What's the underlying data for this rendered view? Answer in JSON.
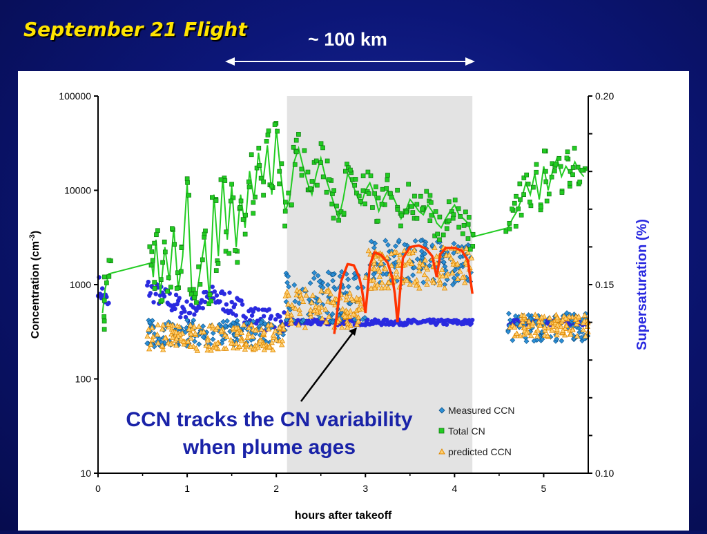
{
  "slide": {
    "title": "September 21 Flight",
    "distance_label": "~ 100 km",
    "callout_line1": "CCN tracks the CN variability",
    "callout_line2": "when plume ages"
  },
  "colors": {
    "background": "#0c1678",
    "title": "#ffe400",
    "measured_ccn": "#2c8fd6",
    "total_cn": "#22cc22",
    "predicted_ccn": "#f0a020",
    "supersaturation": "#2a2ae0",
    "fit_curve": "#ff3300",
    "shaded_region": "#e3e3e3",
    "callout_text": "#1a23a8"
  },
  "chart_data": {
    "type": "scatter",
    "xlabel": "hours after takeoff",
    "ylabel": "Concentration (cm",
    "ylabel_sup": "-3",
    "ylabel_end": ")",
    "y2label": "Supersaturation (%)",
    "xlim": [
      0,
      5.5
    ],
    "ylim": [
      10,
      100000
    ],
    "yscale": "log",
    "y2lim": [
      0.1,
      0.2
    ],
    "x_ticks": [
      "0",
      "1",
      "2",
      "3",
      "4",
      "5"
    ],
    "y_ticks": [
      "10",
      "100",
      "1000",
      "10000",
      "100000"
    ],
    "y2_ticks": [
      "0.10",
      "0.15",
      "0.20"
    ],
    "shaded_x_range": [
      2.12,
      4.2
    ],
    "legend_position": "bottom-right",
    "legend": [
      "Measured CCN",
      "Total CN",
      "predicted CCN"
    ],
    "series": [
      {
        "name": "Total CN",
        "axis": "left",
        "line_x": [
          0.05,
          0.08,
          0.12,
          0.6,
          0.62,
          0.65,
          0.7,
          0.75,
          0.8,
          0.85,
          0.9,
          0.95,
          1.0,
          1.05,
          1.1,
          1.15,
          1.2,
          1.25,
          1.3,
          1.35,
          1.4,
          1.45,
          1.5,
          1.55,
          1.6,
          1.65,
          1.7,
          1.75,
          1.8,
          1.85,
          1.9,
          1.95,
          2.0,
          2.05,
          2.1,
          2.15,
          2.2,
          2.25,
          2.3,
          2.35,
          2.4,
          2.45,
          2.5,
          2.55,
          2.6,
          2.65,
          2.7,
          2.75,
          2.8,
          2.85,
          2.9,
          2.95,
          3.0,
          3.05,
          3.1,
          3.15,
          3.2,
          3.25,
          3.3,
          3.35,
          3.4,
          3.45,
          3.5,
          3.55,
          3.6,
          3.65,
          3.7,
          3.75,
          3.8,
          3.85,
          3.9,
          3.95,
          4.0,
          4.05,
          4.1,
          4.15,
          4.2,
          4.6,
          4.65,
          4.7,
          4.75,
          4.8,
          4.85,
          4.9,
          4.95,
          5.0,
          5.05,
          5.1,
          5.15,
          5.2,
          5.25,
          5.3,
          5.35,
          5.4,
          5.45
        ],
        "line_y": [
          500,
          900,
          1300,
          1700,
          1200,
          3000,
          800,
          2500,
          1100,
          4000,
          900,
          2000,
          12000,
          900,
          700,
          1500,
          3000,
          700,
          9000,
          2000,
          14000,
          3000,
          11000,
          2500,
          9000,
          4000,
          16000,
          8000,
          25000,
          12000,
          30000,
          9000,
          45000,
          15000,
          6000,
          8000,
          20000,
          28000,
          18000,
          12000,
          9000,
          15000,
          22000,
          14000,
          10000,
          7000,
          5000,
          8000,
          15000,
          12000,
          9000,
          7000,
          10000,
          12000,
          9000,
          6000,
          8000,
          10000,
          9000,
          7000,
          5000,
          6000,
          8000,
          7000,
          6000,
          5500,
          7000,
          6000,
          4500,
          4000,
          5000,
          6000,
          7000,
          5500,
          5000,
          4500,
          3200,
          4000,
          5000,
          6000,
          8000,
          12000,
          9000,
          15000,
          8000,
          18000,
          10000,
          16000,
          22000,
          14000,
          18000,
          15000,
          20000,
          16000,
          14000
        ]
      },
      {
        "name": "Supersaturation (%)",
        "axis": "right",
        "x": [
          0.0,
          0.12,
          0.55,
          1.0,
          1.3,
          1.8,
          2.12,
          2.6,
          3.0,
          3.5,
          4.0,
          4.2,
          4.6,
          5.0,
          5.5
        ],
        "y": [
          0.15,
          0.144,
          0.149,
          0.143,
          0.147,
          0.141,
          0.14,
          0.14,
          0.14,
          0.14,
          0.14,
          0.14,
          0.14,
          0.14,
          0.14
        ]
      },
      {
        "name": "Fit curve",
        "axis": "left",
        "segments": [
          {
            "x": [
              2.65,
              2.73,
              2.8,
              2.87,
              2.93,
              2.96,
              3.0
            ],
            "y": [
              300,
              1100,
              1650,
              1600,
              1200,
              900,
              500
            ]
          },
          {
            "x": [
              3.0,
              3.05,
              3.1,
              3.18,
              3.25,
              3.3,
              3.33,
              3.36
            ],
            "y": [
              500,
              1600,
              2200,
              2050,
              1700,
              1200,
              800,
              400
            ]
          },
          {
            "x": [
              3.36,
              3.42,
              3.5,
              3.6,
              3.68,
              3.75,
              3.8
            ],
            "y": [
              400,
              1900,
              2500,
              2600,
              2400,
              2000,
              1200
            ]
          },
          {
            "x": [
              3.8,
              3.84,
              3.9,
              4.0,
              4.08,
              4.15,
              4.2
            ],
            "y": [
              1200,
              2100,
              2450,
              2450,
              2300,
              1800,
              800
            ]
          }
        ]
      },
      {
        "name": "Measured CCN",
        "axis": "left",
        "bands": [
          {
            "x": [
              0.55,
              2.1
            ],
            "y": [
              220,
              420
            ]
          },
          {
            "x": [
              2.1,
              3.05
            ],
            "y": [
              400,
              1400
            ]
          },
          {
            "x": [
              3.05,
              4.2
            ],
            "y": [
              1000,
              3000
            ]
          },
          {
            "x": [
              4.6,
              5.5
            ],
            "y": [
              250,
              500
            ]
          }
        ]
      },
      {
        "name": "predicted CCN",
        "axis": "left",
        "bands": [
          {
            "x": [
              0.55,
              2.1
            ],
            "y": [
              200,
              380
            ]
          },
          {
            "x": [
              2.1,
              3.0
            ],
            "y": [
              350,
              900
            ]
          },
          {
            "x": [
              3.0,
              4.2
            ],
            "y": [
              900,
              2500
            ]
          },
          {
            "x": [
              4.6,
              5.5
            ],
            "y": [
              280,
              480
            ]
          }
        ]
      }
    ]
  }
}
